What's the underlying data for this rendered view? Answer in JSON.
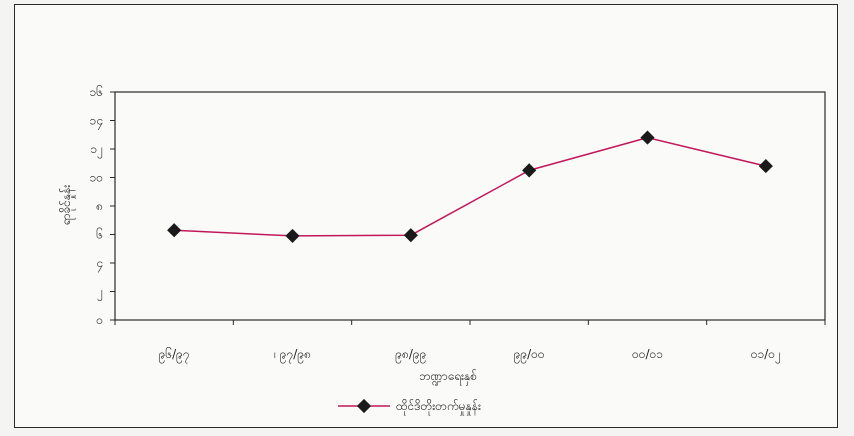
{
  "chart_data": {
    "type": "line",
    "categories": [
      "၉၆/၉၇",
      "၉၇/၉၈",
      "၉၈/၉၉",
      "၉၉/၀၀",
      "၀၀/၀၁",
      "၀၁/၀၂"
    ],
    "category_labels": [
      "၉၆/၉၇",
      "၊ ၉၇/၉၈",
      "၉၈/၉၉",
      "၉၉/၀၀",
      "၀၀/၀၁",
      "၀၁/၀၂"
    ],
    "series": [
      {
        "name": "ထိုင်ဒိတိုးတက်မှုနှုန်း",
        "values": [
          6.3,
          5.9,
          5.95,
          10.5,
          12.8,
          10.8
        ],
        "color": "#c2185b"
      }
    ],
    "ylim": [
      0,
      16
    ],
    "yticks": [
      0,
      2,
      4,
      6,
      8,
      10,
      12,
      14,
      16
    ],
    "ytick_labels": [
      "၀",
      "၂",
      "၄",
      "၆",
      "၈",
      "၁၀",
      "၁၂",
      "၁၄",
      "၁၆"
    ],
    "xlabel": "ဘဏ္ဍာရေးနှစ်",
    "ylabel": "ရာခိုင်နှုန်း",
    "grid": false,
    "legend": "bottom",
    "marker": "diamond"
  }
}
